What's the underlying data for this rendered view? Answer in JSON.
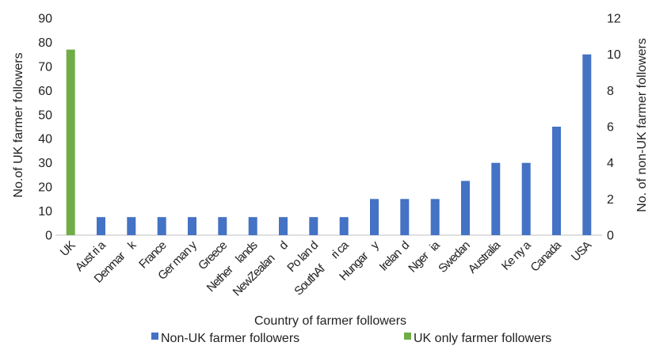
{
  "chart_data": {
    "type": "bar",
    "xlabel": "Country of farmer followers",
    "ylabel_left": "No.of UK farmer followers",
    "ylabel_right": "No. of non-UK farmer followers",
    "ylim_left": [
      0,
      90
    ],
    "ylim_right": [
      0,
      12
    ],
    "yticks_left": [
      "0",
      "10",
      "20",
      "30",
      "40",
      "50",
      "60",
      "70",
      "80",
      "90"
    ],
    "yticks_right": [
      "0",
      "2",
      "4",
      "6",
      "8",
      "10",
      "12"
    ],
    "categories": [
      "UK",
      "Austria",
      "Denmark",
      "France",
      "Germany",
      "Greece",
      "Netherlands",
      "New Zealand",
      "Poland",
      "South Africa",
      "Hungary",
      "Ireland",
      "Nigeria",
      "Sweden",
      "Australia",
      "Kenya",
      "Canada",
      "USA"
    ],
    "category_display": [
      "UK",
      "Aust ri a",
      "Denmar    k",
      "France",
      "Ger man y",
      "Greece",
      "Nether    lands",
      "NewZealan     d",
      "Po lan d",
      "SouthAf      ri ca",
      "Hungar    y",
      "Irelan  d",
      "Nger   ia",
      "Swedan",
      "Australia",
      "Ke ny a",
      "Canada",
      "USA"
    ],
    "series": [
      {
        "name": "Non-UK farmer followers",
        "axis": "right",
        "color": "#4472c4",
        "values": [
          null,
          1,
          1,
          1,
          1,
          1,
          1,
          1,
          1,
          1,
          2,
          2,
          2,
          3,
          4,
          4,
          6,
          10
        ]
      },
      {
        "name": "UK only farmer followers",
        "axis": "left",
        "color": "#70ad47",
        "values": [
          77,
          null,
          null,
          null,
          null,
          null,
          null,
          null,
          null,
          null,
          null,
          null,
          null,
          null,
          null,
          null,
          null,
          null
        ]
      }
    ],
    "legend_position": "bottom",
    "grid": false
  }
}
